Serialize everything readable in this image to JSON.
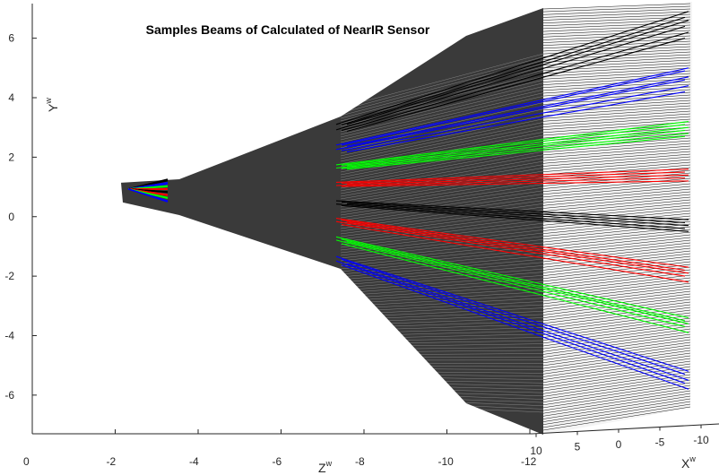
{
  "chart_data": {
    "type": "line",
    "title": "Samples Beams of Calculated of NearIR Sensor",
    "xlabel": "Z",
    "xlabel_sup": "w",
    "ylabel": "Y",
    "ylabel_sup": "w",
    "x2label": "X",
    "x2label_sup": "w",
    "xlim": [
      0,
      -12
    ],
    "ylim": [
      -7.3,
      7.3
    ],
    "x2lim": [
      10,
      -10
    ],
    "x_ticks": [
      "0",
      "-2",
      "-4",
      "-6",
      "-8",
      "-10",
      "-12"
    ],
    "y_ticks": [
      "6",
      "4",
      "2",
      "0",
      "-2",
      "-4",
      "-6"
    ],
    "x2_ticks": [
      "10",
      "5",
      "0",
      "-5",
      "-10"
    ],
    "origin": {
      "z": -2.4,
      "y": 0.9
    },
    "beam_mesh_color": "#3a3a3a",
    "series": [
      {
        "color": "#000000",
        "end_y": [
          6.9,
          6.7,
          6.6,
          6.4,
          6.2,
          6.0
        ]
      },
      {
        "color": "#0000ff",
        "end_y": [
          5.0,
          4.9,
          4.7,
          4.6,
          4.4,
          4.2
        ]
      },
      {
        "color": "#00ff00",
        "end_y": [
          3.2,
          3.1,
          3.0,
          2.9,
          2.8,
          2.7
        ]
      },
      {
        "color": "#ff0000",
        "end_y": [
          1.6,
          1.5,
          1.4,
          1.3,
          1.2
        ]
      },
      {
        "color": "#000000",
        "end_y": [
          -0.1,
          -0.2,
          -0.3,
          -0.4,
          -0.5
        ]
      },
      {
        "color": "#ff0000",
        "end_y": [
          -1.7,
          -1.8,
          -1.9,
          -2.0,
          -2.2
        ]
      },
      {
        "color": "#00ff00",
        "end_y": [
          -3.4,
          -3.5,
          -3.6,
          -3.7,
          -3.9
        ]
      },
      {
        "color": "#0000ff",
        "end_y": [
          -5.2,
          -5.3,
          -5.5,
          -5.6,
          -5.8
        ]
      }
    ]
  }
}
